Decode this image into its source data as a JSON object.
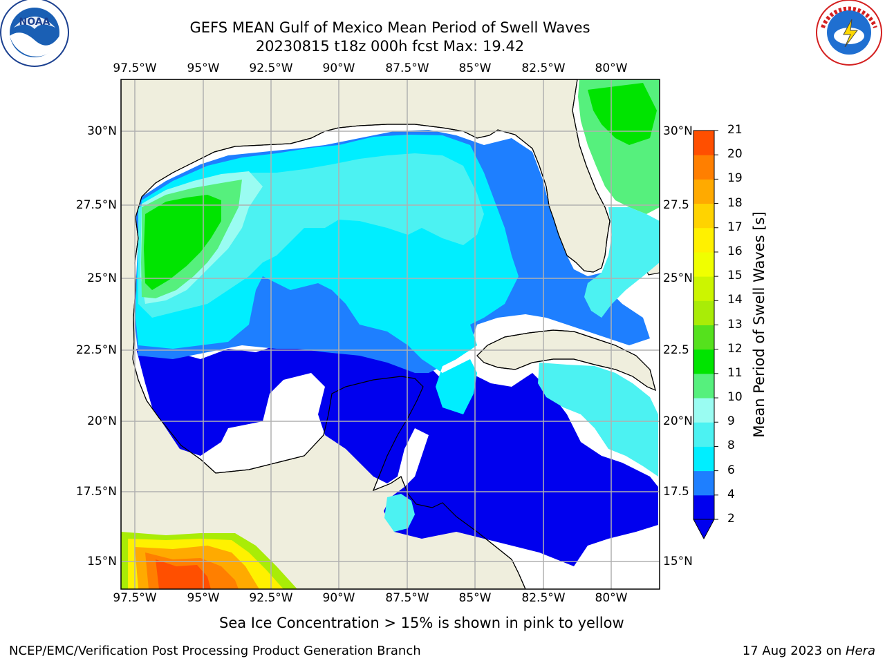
{
  "title": {
    "line1": "GEFS MEAN Gulf of Mexico Mean Period of Swell Waves",
    "line2": "20230815 t18z 000h fcst   Max: 19.42"
  },
  "map": {
    "lon_ticks": [
      "97.5°W",
      "95°W",
      "92.5°W",
      "90°W",
      "87.5°W",
      "85°W",
      "82.5°W",
      "80°W"
    ],
    "lat_ticks": [
      "30°N",
      "27.5°N",
      "25°N",
      "22.5°N",
      "20°N",
      "17.5°N",
      "15°N"
    ],
    "lat_ticks_right": [
      "30°N",
      "27.5",
      "25°N",
      "22.5",
      "20°N",
      "17.5",
      "15°N"
    ],
    "colors": {
      "land": "#efeedd",
      "grid": "#b0b0b0",
      "coast": "#000000"
    }
  },
  "colorbar": {
    "label": "Mean Period of Swell Waves [s]",
    "ticks": [
      "2",
      "4",
      "6",
      "8",
      "9",
      "10",
      "11",
      "12",
      "13",
      "14",
      "15",
      "16",
      "17",
      "18",
      "19",
      "20",
      "21"
    ],
    "colors": [
      "#0000ee",
      "#1e7fff",
      "#00eeff",
      "#4cf2f2",
      "#9afcf2",
      "#56f07d",
      "#00e400",
      "#55e11d",
      "#a9ec07",
      "#ccf500",
      "#f0ff00",
      "#fff100",
      "#ffd300",
      "#ffaa00",
      "#ff7f00",
      "#ff4f00",
      "#ff0000"
    ]
  },
  "footer": {
    "note": "Sea Ice Concentration > 15% is shown in pink to yellow",
    "branch": "NCEP/EMC/Verification Post Processing Product Generation Branch",
    "date": "17 Aug 2023 on ",
    "host": "Hera"
  },
  "logos": {
    "left_icon": "noaa-logo-icon",
    "left_text": "NOAA",
    "right_icon": "nws-logo-icon",
    "right_text": "NATIONAL WEATHER SERVICE"
  }
}
